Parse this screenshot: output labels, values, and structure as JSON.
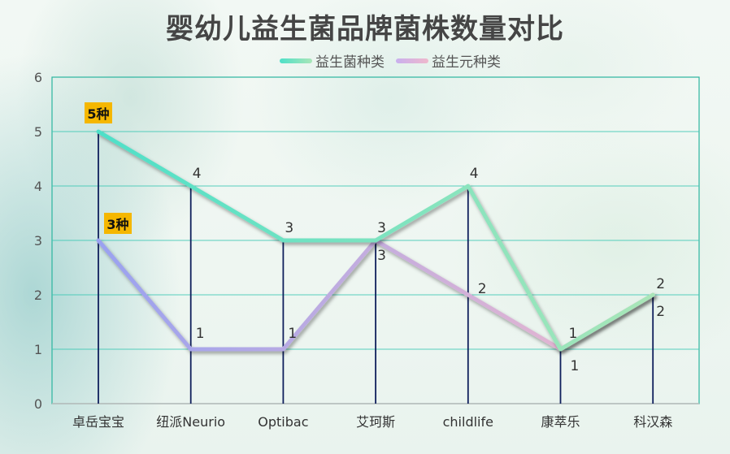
{
  "title": "婴幼儿益生菌品牌菌株数量对比",
  "colors": {
    "probiotic_start": "#4ee0c8",
    "probiotic_end": "#a9e6b8",
    "prebiotic_start": "#9aa2f0",
    "prebiotic_end": "#efb8cc",
    "grid": "#3cc8b4",
    "axis": "#2bb59f",
    "drop_line": "#0f1f5c",
    "badge": "#f5b700"
  },
  "chart_data": {
    "type": "line",
    "title": "婴幼儿益生菌品牌菌株数量对比",
    "xlabel": "",
    "ylabel": "",
    "categories": [
      "卓岳宝宝",
      "纽派Neurio",
      "Optibac",
      "艾珂斯",
      "childlife",
      "康萃乐",
      "科汉森"
    ],
    "ylim": [
      0,
      6
    ],
    "yticks": [
      "0",
      "1",
      "2",
      "3",
      "4",
      "5",
      "6"
    ],
    "grid": true,
    "legend_position": "top",
    "series": [
      {
        "name": "益生菌种类",
        "values": [
          5,
          4,
          3,
          3,
          4,
          1,
          2
        ],
        "labels": [
          "5种",
          "4",
          "3",
          "3",
          "4",
          "1",
          "2"
        ]
      },
      {
        "name": "益生元种类",
        "values": [
          3,
          1,
          1,
          3,
          2,
          1,
          2
        ],
        "labels": [
          "3种",
          "1",
          "1",
          "3",
          "2",
          "1",
          "2"
        ]
      }
    ]
  }
}
